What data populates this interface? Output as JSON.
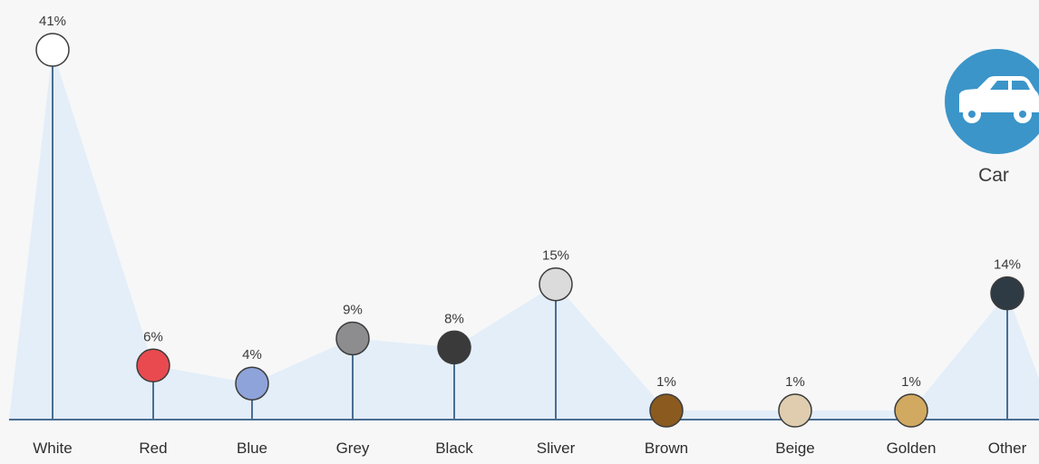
{
  "chart_data": {
    "type": "lollipop-area",
    "categories": [
      "White",
      "Red",
      "Blue",
      "Grey",
      "Black",
      "Sliver",
      "Brown",
      "Beige",
      "Golden",
      "Other"
    ],
    "values": [
      41,
      6,
      4,
      9,
      8,
      15,
      1,
      1,
      1,
      14
    ],
    "value_labels": [
      "41%",
      "6%",
      "4%",
      "9%",
      "8%",
      "15%",
      "1%",
      "1%",
      "1%",
      "14%"
    ],
    "marker_colors": [
      "#ffffff",
      "#e84a4f",
      "#8ea3d9",
      "#8d8c8e",
      "#3a3a3a",
      "#dcdbdc",
      "#8b5a1f",
      "#e0cdb0",
      "#d1a960",
      "#2f3b44"
    ],
    "ylim": [
      0,
      41
    ],
    "grid": false,
    "area_fill": "#e3eef8",
    "stem_color": "#4a6e92",
    "baseline_color": "#4a6e92"
  },
  "badge": {
    "icon": "car-icon",
    "caption": "Car",
    "color": "#3b95c9"
  }
}
